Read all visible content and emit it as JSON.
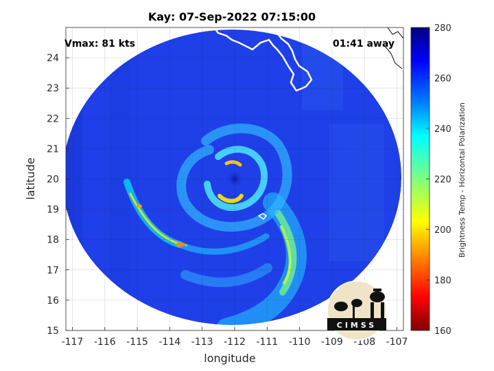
{
  "chart_data": {
    "type": "heatmap",
    "title": "Kay: 07-Sep-2022 07:15:00",
    "xlabel": "longitude",
    "ylabel": "latitude",
    "xlim": [
      -117.2,
      -106.8
    ],
    "ylim": [
      15,
      25
    ],
    "xticks": [
      -117,
      -116,
      -115,
      -114,
      -113,
      -112,
      -111,
      -110,
      -109,
      -108,
      -107
    ],
    "yticks": [
      15,
      16,
      17,
      18,
      19,
      20,
      21,
      22,
      23,
      24
    ],
    "grid": true,
    "annotations": {
      "vmax": "Vmax: 81 kts",
      "time_away": "01:41 away"
    },
    "colorbar": {
      "label": "Brightness Temp - Horizontal Polarization",
      "range": [
        160,
        280
      ],
      "ticks": [
        160,
        180,
        200,
        220,
        240,
        260,
        280
      ],
      "colormap": "jet"
    },
    "storm_center": {
      "lon": -112.0,
      "lat": 20.0
    },
    "swath_center": {
      "lon": -112.1,
      "lat": 20.0
    },
    "logo_text": "CIMSS"
  },
  "colors": {
    "background_cold": "#1c3ce6",
    "land_outline": "#ffffff",
    "coast_outline": "#000000"
  }
}
